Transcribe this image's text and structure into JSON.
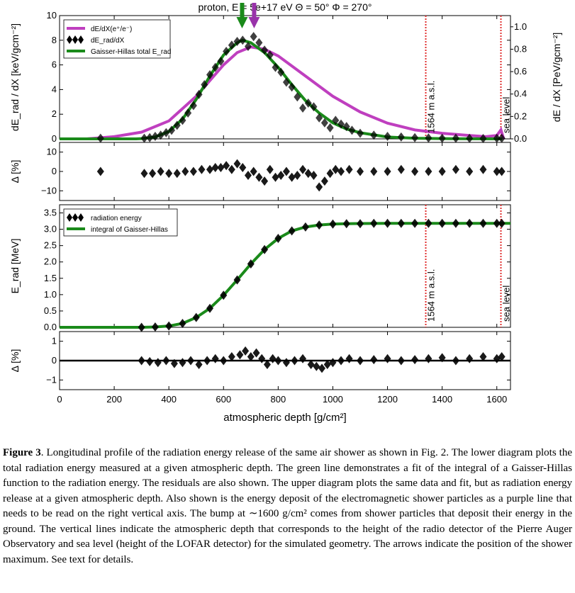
{
  "figure": {
    "title": "proton, E = 5e+17 eV Θ = 50° Φ = 270°",
    "xlabel": "atmospheric depth [g/cm²]",
    "xticks": [
      "0",
      "200",
      "400",
      "600",
      "800",
      "1000",
      "1200",
      "1400",
      "1600"
    ]
  },
  "chart_data": [
    {
      "type": "line",
      "panel": "top",
      "ylabel": "dE_rad / dX [keV/gcm⁻²]",
      "y2label": "dE / dX [PeV/gcm⁻²]",
      "xlim": [
        0,
        1650
      ],
      "ylim": [
        0,
        10
      ],
      "y2lim": [
        0,
        1.1
      ],
      "yticks": [
        "0",
        "2",
        "4",
        "6",
        "8",
        "10"
      ],
      "y2ticks": [
        "0.0",
        "0.2",
        "0.4",
        "0.6",
        "0.8",
        "1.0"
      ],
      "legend": [
        "dE/dX(e⁺/e⁻)",
        "dE_rad/dX",
        "Gaisser-Hillas total E_rad"
      ],
      "legend_position": "top-left",
      "series": [
        {
          "name": "dE/dX(e⁺/e⁻)",
          "color": "#bf3fbf",
          "axis": "right",
          "x": [
            0,
            100,
            200,
            300,
            400,
            500,
            600,
            650,
            700,
            750,
            800,
            900,
            1000,
            1100,
            1200,
            1300,
            1400,
            1500,
            1560,
            1600,
            1615,
            1625
          ],
          "y": [
            0.0,
            0.0,
            0.02,
            0.06,
            0.16,
            0.38,
            0.66,
            0.77,
            0.82,
            0.8,
            0.74,
            0.56,
            0.38,
            0.24,
            0.14,
            0.08,
            0.05,
            0.03,
            0.02,
            0.03,
            0.08,
            0.0
          ]
        },
        {
          "name": "Gaisser-Hillas total E_rad",
          "color": "#1a8a1a",
          "axis": "left",
          "x": [
            0,
            280,
            300,
            350,
            400,
            450,
            500,
            550,
            600,
            650,
            670,
            700,
            750,
            800,
            850,
            900,
            950,
            1000,
            1050,
            1100,
            1200,
            1300,
            1400,
            1500,
            1620
          ],
          "y": [
            0.0,
            0.0,
            0.02,
            0.15,
            0.6,
            1.6,
            3.2,
            5.1,
            6.8,
            7.8,
            8.0,
            7.8,
            7.0,
            5.8,
            4.4,
            3.1,
            2.1,
            1.3,
            0.8,
            0.5,
            0.15,
            0.05,
            0.02,
            0.01,
            0.0
          ]
        },
        {
          "name": "dE_rad/dX",
          "color": "#000000",
          "axis": "left",
          "marker": "diamond",
          "x": [
            150,
            310,
            330,
            350,
            370,
            390,
            410,
            430,
            450,
            470,
            490,
            510,
            530,
            550,
            570,
            590,
            610,
            630,
            650,
            670,
            690,
            710,
            730,
            750,
            770,
            790,
            810,
            830,
            850,
            870,
            890,
            910,
            930,
            950,
            970,
            990,
            1010,
            1030,
            1050,
            1070,
            1100,
            1150,
            1200,
            1250,
            1300,
            1350,
            1400,
            1450,
            1500,
            1550,
            1600,
            1618
          ],
          "y": [
            0.05,
            0.05,
            0.1,
            0.2,
            0.3,
            0.5,
            0.7,
            1.1,
            1.5,
            2.1,
            2.7,
            3.6,
            4.4,
            5.2,
            5.8,
            6.3,
            7.1,
            7.6,
            7.9,
            8.0,
            7.5,
            8.3,
            7.8,
            7.2,
            6.8,
            5.8,
            5.4,
            4.6,
            4.2,
            3.4,
            2.5,
            2.9,
            2.6,
            1.7,
            1.3,
            0.9,
            1.5,
            1.2,
            1.0,
            0.7,
            0.45,
            0.3,
            0.2,
            0.15,
            0.1,
            0.07,
            0.05,
            0.05,
            0.04,
            0.03,
            0.05,
            0.05
          ]
        }
      ],
      "annotations": [
        {
          "text": "1564 m a.s.l.",
          "x": 1340
        },
        {
          "text": "sea level",
          "x": 1615
        }
      ],
      "arrows": [
        {
          "x": 668,
          "color": "#1a8a1a"
        },
        {
          "x": 712,
          "color": "#9933aa"
        }
      ]
    },
    {
      "type": "scatter",
      "panel": "residual-top",
      "ylabel": "Δ [%]",
      "ylim": [
        -15,
        15
      ],
      "yticks": [
        "−10",
        "0",
        "10"
      ],
      "series": [
        {
          "name": "residual",
          "color": "#000000",
          "x": [
            150,
            310,
            340,
            370,
            400,
            430,
            460,
            490,
            520,
            550,
            570,
            590,
            610,
            630,
            650,
            670,
            690,
            710,
            730,
            750,
            770,
            790,
            810,
            830,
            850,
            870,
            890,
            910,
            930,
            950,
            970,
            990,
            1010,
            1030,
            1060,
            1100,
            1150,
            1200,
            1250,
            1300,
            1350,
            1400,
            1450,
            1500,
            1550,
            1600,
            1618
          ],
          "y": [
            0,
            -1,
            -1,
            0,
            -1,
            -1,
            0,
            0,
            1,
            1,
            2,
            2,
            3,
            1,
            4,
            2,
            -2,
            0,
            -3,
            -5,
            1,
            -3,
            -2,
            0,
            -3,
            -2,
            1,
            -1,
            -2,
            -8,
            -5,
            -1,
            1,
            0,
            1,
            0,
            0,
            0,
            1,
            0,
            0,
            0,
            1,
            0,
            1,
            0,
            0
          ]
        }
      ]
    },
    {
      "type": "line",
      "panel": "middle",
      "ylabel": "E_rad [MeV]",
      "xlim": [
        0,
        1650
      ],
      "ylim": [
        0,
        3.75
      ],
      "yticks": [
        "0.0",
        "0.5",
        "1.0",
        "1.5",
        "2.0",
        "2.5",
        "3.0",
        "3.5"
      ],
      "legend": [
        "radiation energy",
        "integral of Gaisser-Hillas"
      ],
      "legend_position": "top-left",
      "series": [
        {
          "name": "integral of Gaisser-Hillas",
          "color": "#1a8a1a",
          "x": [
            0,
            280,
            300,
            350,
            400,
            450,
            500,
            550,
            600,
            650,
            700,
            750,
            800,
            850,
            900,
            950,
            1000,
            1050,
            1100,
            1200,
            1300,
            1400,
            1500,
            1600,
            1650
          ],
          "y": [
            0.0,
            0.0,
            0.0,
            0.01,
            0.04,
            0.12,
            0.3,
            0.58,
            0.98,
            1.45,
            1.94,
            2.38,
            2.72,
            2.95,
            3.07,
            3.13,
            3.16,
            3.17,
            3.175,
            3.18,
            3.18,
            3.18,
            3.18,
            3.18,
            3.18
          ]
        },
        {
          "name": "radiation energy",
          "color": "#000000",
          "marker": "diamond",
          "x": [
            300,
            350,
            400,
            450,
            500,
            550,
            600,
            650,
            700,
            750,
            800,
            850,
            900,
            950,
            1000,
            1050,
            1100,
            1150,
            1200,
            1250,
            1300,
            1350,
            1400,
            1450,
            1500,
            1550,
            1600,
            1618
          ],
          "y": [
            0.0,
            0.01,
            0.04,
            0.12,
            0.3,
            0.58,
            0.98,
            1.45,
            1.94,
            2.38,
            2.72,
            2.95,
            3.07,
            3.13,
            3.16,
            3.17,
            3.17,
            3.18,
            3.18,
            3.18,
            3.18,
            3.18,
            3.18,
            3.18,
            3.18,
            3.18,
            3.18,
            3.18
          ]
        }
      ],
      "annotations": [
        {
          "text": "1564 m a.s.l.",
          "x": 1340
        },
        {
          "text": "sea level",
          "x": 1615
        }
      ]
    },
    {
      "type": "scatter",
      "panel": "residual-bottom",
      "ylabel": "Δ [%]",
      "ylim": [
        -1.5,
        1.5
      ],
      "yticks": [
        "−1",
        "0",
        "1"
      ],
      "series": [
        {
          "name": "residual",
          "color": "#000000",
          "x": [
            300,
            330,
            360,
            390,
            420,
            450,
            480,
            510,
            540,
            570,
            600,
            630,
            660,
            680,
            700,
            720,
            740,
            760,
            780,
            800,
            830,
            860,
            890,
            920,
            940,
            960,
            980,
            1000,
            1030,
            1060,
            1100,
            1150,
            1200,
            1250,
            1300,
            1350,
            1400,
            1450,
            1500,
            1550,
            1600,
            1618
          ],
          "y": [
            0,
            -0.05,
            -0.1,
            0,
            -0.15,
            -0.1,
            0,
            -0.2,
            0,
            0.1,
            0,
            0.2,
            0.3,
            0.5,
            0.2,
            0.4,
            0.1,
            -0.2,
            0.1,
            0,
            -0.1,
            0,
            0.1,
            -0.2,
            -0.3,
            -0.4,
            -0.2,
            -0.1,
            0,
            0.1,
            0,
            0.05,
            0.1,
            0,
            0.05,
            0.1,
            0.15,
            0,
            0.1,
            0.2,
            0.1,
            0.2
          ]
        }
      ]
    }
  ],
  "caption": {
    "label": "Figure 3",
    "text": ". Longitudinal profile of the radiation energy release of the same air shower as shown in Fig. 2. The lower diagram plots the total radiation energy measured at a given atmospheric depth. The green line demonstrates a fit of the integral of a Gaisser-Hillas function to the radiation energy. The residuals are also shown. The upper diagram plots the same data and fit, but as radiation energy release at a given atmospheric depth. Also shown is the energy deposit of the electromagnetic shower particles as a purple line that needs to be read on the right vertical axis. The bump at ∼1600 g/cm² comes from shower particles that deposit their energy in the ground. The vertical lines indicate the atmospheric depth that corresponds to the height of the radio detector of the Pierre Auger Observatory and sea level (height of the LOFAR detector) for the simulated geometry. The arrows indicate the position of the shower maximum. See text for details."
  }
}
